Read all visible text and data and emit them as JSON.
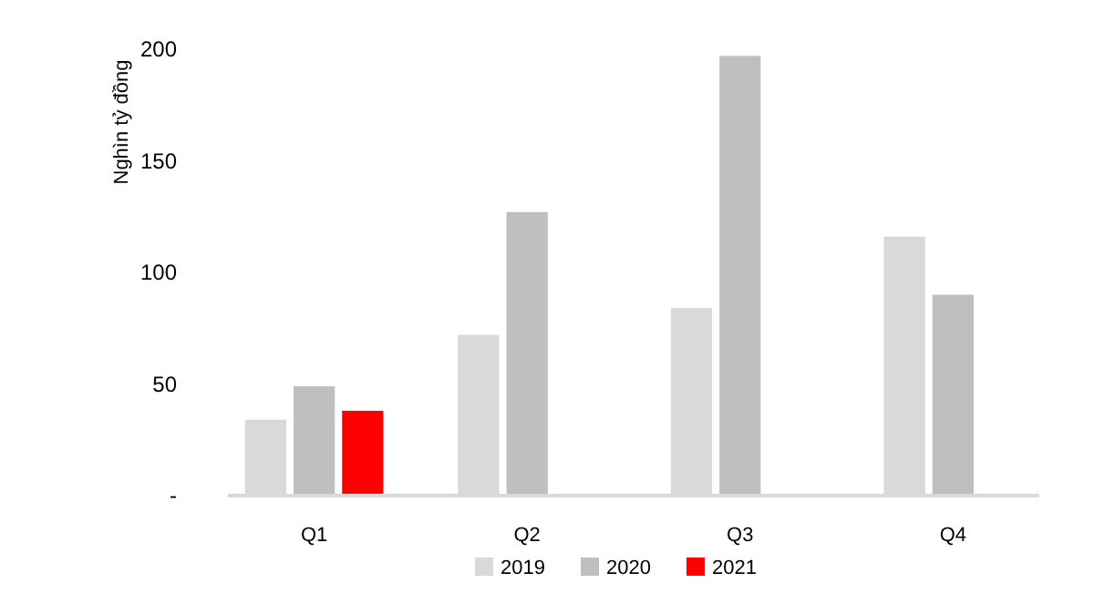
{
  "chart_data": {
    "type": "bar",
    "ylabel": "Nghìn tỷ đồng",
    "categories": [
      "Q1",
      "Q2",
      "Q3",
      "Q4"
    ],
    "series": [
      {
        "name": "2019",
        "color": "#d9d9d9",
        "values": [
          34,
          72,
          84,
          116
        ]
      },
      {
        "name": "2020",
        "color": "#bfbfbf",
        "values": [
          49,
          127,
          197,
          90
        ]
      },
      {
        "name": "2021",
        "color": "#ff0000",
        "values": [
          38,
          null,
          null,
          null
        ]
      }
    ],
    "ylim": [
      0,
      200
    ],
    "yticks": [
      {
        "value": 0,
        "label": "-"
      },
      50,
      100,
      150,
      200
    ],
    "grid": false,
    "legend": "bottom"
  }
}
